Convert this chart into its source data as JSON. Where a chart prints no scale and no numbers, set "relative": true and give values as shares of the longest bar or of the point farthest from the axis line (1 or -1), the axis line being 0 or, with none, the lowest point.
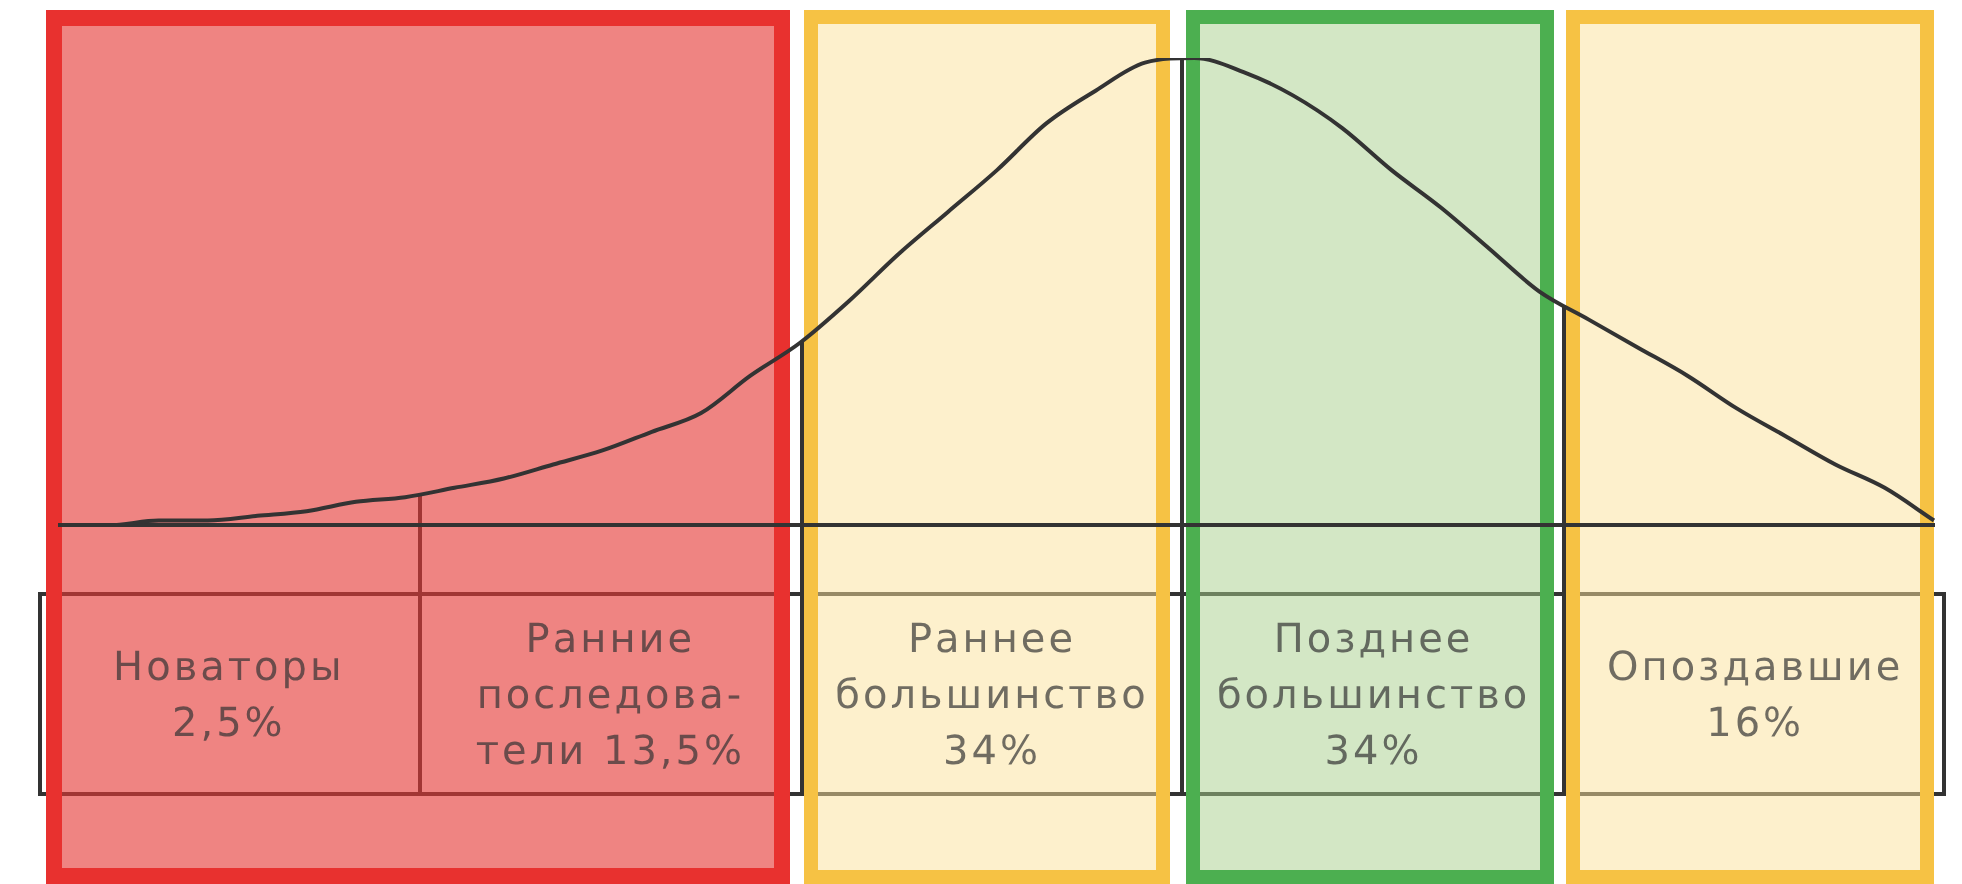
{
  "chart_data": {
    "type": "line",
    "relative": true,
    "marker": "none",
    "color": "#333333",
    "categories": [
      null,
      null,
      null,
      null,
      null,
      null,
      null,
      null,
      null,
      null,
      null,
      null,
      null,
      null,
      null,
      null,
      null,
      null,
      null,
      null,
      null,
      null,
      null,
      null,
      null,
      null,
      null,
      null,
      null,
      null,
      null,
      null,
      null,
      null,
      null,
      null,
      null,
      null,
      null
    ],
    "values": [
      0,
      0,
      0.01,
      0.01,
      0.02,
      0.03,
      0.05,
      0.06,
      0.08,
      0.1,
      0.13,
      0.16,
      0.2,
      0.24,
      0.32,
      0.39,
      0.48,
      0.58,
      0.67,
      0.76,
      0.86,
      0.93,
      0.99,
      1,
      0.97,
      0.92,
      0.85,
      0.76,
      0.68,
      0.59,
      0.5,
      0.44,
      0.38,
      0.32,
      0.25,
      0.19,
      0.13,
      0.08,
      0.01
    ],
    "annotations": [
      "Новаторы\n2,5%",
      "Ранние\nпоследова-\nтели 13,5%",
      "Раннее\nбольшинство\n34%",
      "Позднее\nбольшинство\n34%",
      "Опоздавшие\n16%"
    ]
  }
}
